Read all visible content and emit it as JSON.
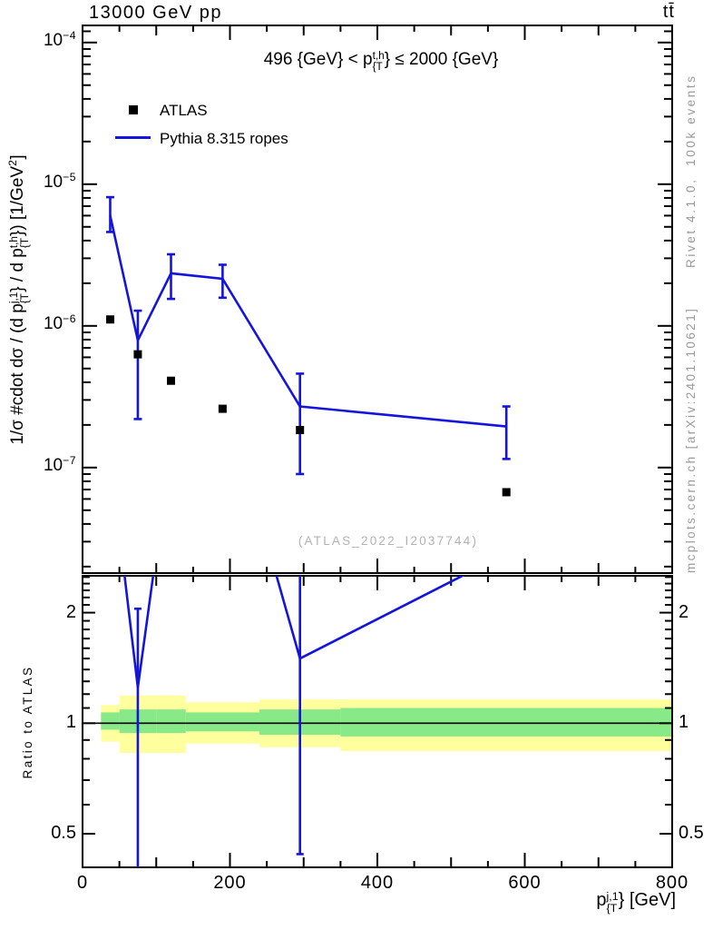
{
  "header": {
    "title_left": "13000 GeV pp",
    "title_right": "tt̄"
  },
  "right_margin": {
    "top_text": "Rivet 4.1.0,  100k events",
    "bottom_text": "mcplots.cern.ch [arXiv:2401.10621]"
  },
  "watermark": "(ATLAS_2022_I2037744)",
  "colors": {
    "model_blue": "#1414dc",
    "band_yellow": "#ffff9e",
    "band_green": "#87e987",
    "gray_text": "#9a9a9a",
    "watermark_gray": "#b2b2b2",
    "frame_black": "#000000"
  },
  "legend": [
    {
      "marker": "square",
      "label": "ATLAS"
    },
    {
      "marker": "line",
      "label": "Pythia 8.315 ropes"
    }
  ],
  "annotation_parts": [
    {
      "t": "496 {GeV} < p"
    },
    {
      "sup": "t,h",
      "sub": "{T"
    },
    {
      "t": "} ≤ 2000 {GeV}"
    }
  ],
  "labels": {
    "ylabel_main_parts": [
      {
        "t": "1/σ #cdot dσ / (d p"
      },
      {
        "sup": "j,1",
        "sub": "{T"
      },
      {
        "t": "} / d p"
      },
      {
        "sup": "t,h",
        "sub": "{T"
      },
      {
        "t": "}) [1/GeV"
      },
      {
        "suponly": "2"
      },
      {
        "t": "]"
      }
    ],
    "ylabel_ratio": "Ratio to ATLAS",
    "xlabel_parts": [
      {
        "t": "p"
      },
      {
        "sup": "j,1",
        "sub": "{T"
      },
      {
        "t": "} [GeV]"
      }
    ]
  },
  "chart_data": {
    "type": "line",
    "title": "13000 GeV pp, tt̄ : 496 GeV < pT(t,h) <= 2000 GeV",
    "xlabel": "pT(j,1) [GeV]",
    "xlim": [
      0,
      800
    ],
    "xticks": {
      "major": [
        0,
        200,
        400,
        600,
        800
      ],
      "labels": [
        "0",
        "200",
        "400",
        "600",
        "800"
      ],
      "minor_step": 50
    },
    "grid": false,
    "legend_position": "top-left",
    "panels": [
      {
        "id": "main",
        "ylabel": "1/sigma #cdot dsigma / (d pT{j,1} / d pT{t,h}) [1/GeV^2]",
        "yscale": "log",
        "ylim": [
          1.8e-08,
          0.000132
        ],
        "ytick_exponents": [
          -4,
          -5,
          -6,
          -7
        ],
        "series": [
          {
            "name": "ATLAS",
            "style": "scatter-square",
            "color": "#000000",
            "x": [
              37.5,
              75,
              120,
              190,
              295,
              575
            ],
            "y": [
              1.11e-06,
              6.3e-07,
              4.1e-07,
              2.6e-07,
              1.84e-07,
              6.7e-08
            ]
          },
          {
            "name": "Pythia 8.315 ropes",
            "style": "line-errorbar",
            "color": "#1414dc",
            "x": [
              37.5,
              75,
              120,
              190,
              295,
              575
            ],
            "y": [
              6e-06,
              7.9e-07,
              2.35e-06,
              2.15e-06,
              2.7e-07,
              1.95e-07
            ],
            "ylo": [
              4.6e-06,
              2.2e-07,
              1.55e-06,
              1.58e-06,
              9e-08,
              1.15e-07
            ],
            "yhi": [
              8.1e-06,
              1.28e-06,
              3.2e-06,
              2.7e-06,
              4.6e-07,
              2.7e-07
            ]
          }
        ]
      },
      {
        "id": "ratio",
        "ylabel": "Ratio to ATLAS",
        "yscale": "log",
        "ylim": [
          0.405,
          2.52
        ],
        "yticks_labeled": {
          "values": [
            2,
            1,
            0.5
          ],
          "labels": [
            "2",
            "1",
            "0.5"
          ]
        },
        "yticks_minor": [
          0.4,
          0.6,
          0.7,
          0.8,
          0.9,
          1.1,
          1.2,
          1.3,
          1.4,
          1.5,
          1.6,
          1.7,
          1.8,
          1.9,
          2.1,
          2.2,
          2.3,
          2.4,
          2.5
        ],
        "reference_line": 1,
        "bands": {
          "bin_edges": [
            25,
            50,
            100,
            140,
            240,
            350,
            800
          ],
          "yellow_lo": [
            0.89,
            0.83,
            0.83,
            0.88,
            0.86,
            0.84
          ],
          "yellow_hi": [
            1.12,
            1.19,
            1.19,
            1.14,
            1.16,
            1.16
          ],
          "green_lo": [
            0.96,
            0.94,
            0.94,
            0.95,
            0.93,
            0.92
          ],
          "green_hi": [
            1.07,
            1.09,
            1.09,
            1.07,
            1.09,
            1.1
          ]
        },
        "series": [
          {
            "name": "Pythia/ATLAS",
            "style": "line-errorbar",
            "color": "#1414dc",
            "x": [
              37.5,
              75,
              120,
              190,
              295,
              575
            ],
            "y": [
              5.4,
              1.25,
              5.7,
              8.3,
              1.5,
              2.9
            ],
            "ylo": [
              null,
              0.35,
              null,
              null,
              0.44,
              null
            ],
            "yhi": [
              null,
              2.05,
              null,
              null,
              2.6,
              null
            ]
          }
        ]
      }
    ]
  }
}
